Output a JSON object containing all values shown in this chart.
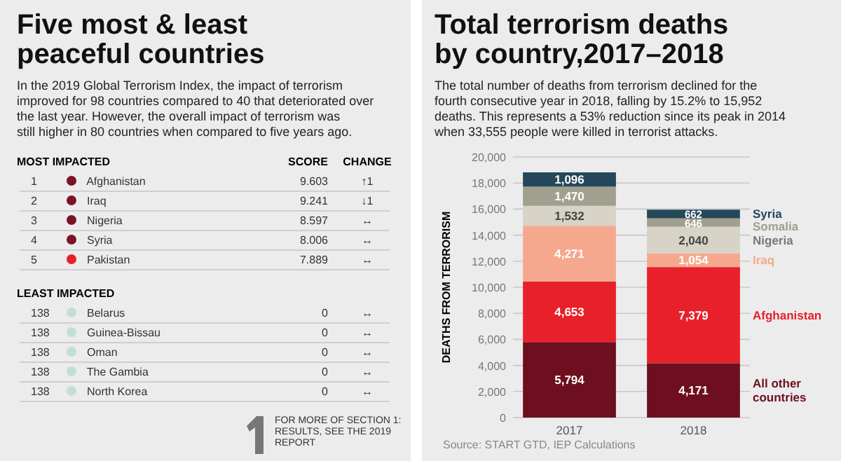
{
  "chart_data": [
    {
      "type": "other",
      "title": "Five most & least peaceful countries",
      "subtitle": "In the 2019 Global Terrorism Index, the impact of terrorism improved for 98 countries compared to 40 that deteriorated over the last year. However, the overall impact of terrorism was still higher in 80 countries when compared to five years ago.",
      "categories": [
        "Afghanistan",
        "Iraq",
        "Nigeria",
        "Syria",
        "Pakistan",
        "Belarus",
        "Guinea-Bissau",
        "Oman",
        "The Gambia",
        "North Korea"
      ],
      "values": [
        9.603,
        9.241,
        8.597,
        8.006,
        7.889,
        0,
        0,
        0,
        0,
        0
      ],
      "colors": [
        "#7a1426",
        "#7a1426",
        "#7a1426",
        "#7a1426",
        "#e8202a",
        "#bfe0d6",
        "#bfe0d6",
        "#bfe0d6",
        "#bfe0d6",
        "#bfe0d6"
      ],
      "data_labels": true,
      "annotations": [
        "MOST IMPACTED",
        "SCORE",
        "CHANGE",
        "LEAST IMPACTED",
        "FOR MORE OF SECTION 1: RESULTS, SEE THE 2019 REPORT",
        {
          "text": "1",
          "x": "Afghanistan"
        },
        {
          "text": "↑1",
          "x": "Afghanistan"
        },
        {
          "text": "2",
          "x": "Iraq"
        },
        {
          "text": "↓1",
          "x": "Iraq"
        },
        {
          "text": "3",
          "x": "Nigeria"
        },
        {
          "text": "↔",
          "x": "Nigeria"
        },
        {
          "text": "4",
          "x": "Syria"
        },
        {
          "text": "↔",
          "x": "Syria"
        },
        {
          "text": "5",
          "x": "Pakistan"
        },
        {
          "text": "↔",
          "x": "Pakistan"
        },
        {
          "text": "138",
          "x": "Belarus"
        },
        {
          "text": "↔",
          "x": "Belarus"
        },
        {
          "text": "138",
          "x": "Guinea-Bissau"
        },
        {
          "text": "↔",
          "x": "Guinea-Bissau"
        },
        {
          "text": "138",
          "x": "Oman"
        },
        {
          "text": "↔",
          "x": "Oman"
        },
        {
          "text": "138",
          "x": "The Gambia"
        },
        {
          "text": "↔",
          "x": "The Gambia"
        },
        {
          "text": "138",
          "x": "North Korea"
        },
        {
          "text": "↔",
          "x": "North Korea"
        }
      ]
    },
    {
      "type": "bar",
      "stacked": true,
      "title": "Total terrorism deaths by country,2017–2018",
      "subtitle": "The total number of deaths from terrorism declined for the fourth consecutive year in 2018, falling by 15.2% to 15,952 deaths. This represents a 53% reduction since its peak in 2014 when 33,555 people were killed in terrorist attacks.",
      "ylabel": "DEATHS FROM TERRORISM",
      "categories": [
        "2017",
        "2018"
      ],
      "ylim": [
        0,
        20000
      ],
      "yticks": [
        0,
        {
          "value": 2000,
          "label": "2,000"
        },
        {
          "value": 4000,
          "label": "4,000"
        },
        {
          "value": 6000,
          "label": "6,000"
        },
        {
          "value": 8000,
          "label": "8,000"
        },
        {
          "value": 10000,
          "label": "10,000"
        },
        {
          "value": 12000,
          "label": "12,000"
        },
        {
          "value": 14000,
          "label": "14,000"
        },
        {
          "value": 16000,
          "label": "16,000"
        },
        {
          "value": 18000,
          "label": "18,000"
        },
        {
          "value": 20000,
          "label": "20,000"
        }
      ],
      "grid": "y",
      "series": [
        {
          "name": "All other countries",
          "color": "#6d0f1e",
          "values": [
            5794,
            4171
          ],
          "value_labels": [
            "5,794",
            "4,171"
          ]
        },
        {
          "name": "Afghanistan",
          "color": "#e8202a",
          "values": [
            4653,
            7379
          ],
          "value_labels": [
            "4,653",
            "7,379"
          ]
        },
        {
          "name": "Iraq",
          "color": "#f6a88e",
          "values": [
            4271,
            1054
          ],
          "value_labels": [
            "4,271",
            "1,054"
          ]
        },
        {
          "name": "Nigeria",
          "color": "#d7d3c6",
          "values": [
            1532,
            2040
          ],
          "value_labels": [
            "1,532",
            "2,040"
          ]
        },
        {
          "name": "Somalia",
          "color": "#a19f8d",
          "values": [
            1470,
            646
          ],
          "value_labels": [
            "1,470",
            "646"
          ]
        },
        {
          "name": "Syria",
          "color": "#24485a",
          "values": [
            1096,
            662
          ],
          "value_labels": [
            "1,096",
            "662"
          ]
        }
      ],
      "annotations": [
        "Source: START GTD, IEP Calculations"
      ]
    }
  ]
}
